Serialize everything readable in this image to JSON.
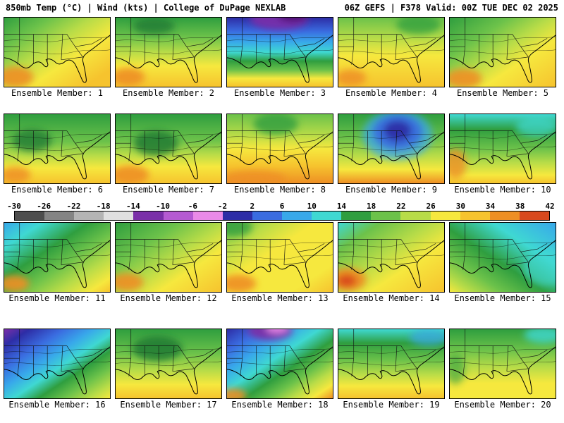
{
  "header": {
    "left": "850mb Temp (°C) | Wind (kts) | College of DuPage NEXLAB",
    "right": "06Z GEFS | F378 Valid: 00Z TUE DEC 02 2025"
  },
  "colorbar": {
    "unit": "°C",
    "ticks": [
      "-30",
      "-26",
      "-22",
      "-18",
      "-14",
      "-10",
      "-6",
      "-2",
      "2",
      "6",
      "10",
      "14",
      "18",
      "22",
      "26",
      "30",
      "34",
      "38",
      "42"
    ],
    "colors": [
      "#4d4d4d",
      "#848484",
      "#b4b4b4",
      "#e0e0e0",
      "#7a2fa8",
      "#b55ad2",
      "#ea8ae8",
      "#2d2da6",
      "#3a6ce0",
      "#38a8ea",
      "#3fd8d2",
      "#2f9e3f",
      "#6cc24a",
      "#b8dc48",
      "#f6e83e",
      "#f6c32e",
      "#ee8f24",
      "#d8491e"
    ]
  },
  "panels": [
    {
      "label": "Ensemble Member: 1",
      "dir": "d",
      "stops": [
        [
          0,
          "#2f9e3f"
        ],
        [
          0.22,
          "#6cc24a"
        ],
        [
          0.42,
          "#b8dc48"
        ],
        [
          0.62,
          "#f6e83e"
        ],
        [
          0.88,
          "#f6c32e"
        ],
        [
          1,
          "#f6c32e"
        ]
      ],
      "blobs": [
        [
          16,
          86,
          26,
          15,
          "#ee8f24",
          0.9
        ]
      ]
    },
    {
      "label": "Ensemble Member: 2",
      "dir": "v",
      "stops": [
        [
          0,
          "#2f9e3f"
        ],
        [
          0.28,
          "#6cc24a"
        ],
        [
          0.5,
          "#b8dc48"
        ],
        [
          0.7,
          "#f6e83e"
        ],
        [
          1,
          "#f6c32e"
        ]
      ],
      "blobs": [
        [
          55,
          12,
          30,
          12,
          "#1f7a33",
          0.8
        ],
        [
          18,
          86,
          24,
          13,
          "#ee8f24",
          0.9
        ]
      ]
    },
    {
      "label": "Ensemble Member: 3",
      "dir": "v",
      "stops": [
        [
          0,
          "#2d2da6"
        ],
        [
          0.2,
          "#3a6ce0"
        ],
        [
          0.35,
          "#38a8ea"
        ],
        [
          0.5,
          "#3fd8d2"
        ],
        [
          0.63,
          "#2f9e3f"
        ],
        [
          0.76,
          "#6cc24a"
        ],
        [
          0.88,
          "#f6e83e"
        ],
        [
          1,
          "#f6c32e"
        ]
      ],
      "blobs": [
        [
          75,
          2,
          42,
          16,
          "#7a2fa8",
          0.9
        ],
        [
          95,
          -4,
          22,
          10,
          "#4b0d6e",
          0.9
        ]
      ]
    },
    {
      "label": "Ensemble Member: 4",
      "dir": "v",
      "stops": [
        [
          0,
          "#6cc24a"
        ],
        [
          0.3,
          "#b8dc48"
        ],
        [
          0.55,
          "#f6e83e"
        ],
        [
          1,
          "#f6c32e"
        ]
      ],
      "blobs": [
        [
          115,
          10,
          32,
          14,
          "#2f9e3f",
          0.75
        ],
        [
          18,
          87,
          22,
          12,
          "#ee8f24",
          0.85
        ]
      ]
    },
    {
      "label": "Ensemble Member: 5",
      "dir": "d",
      "stops": [
        [
          0,
          "#2f9e3f"
        ],
        [
          0.28,
          "#6cc24a"
        ],
        [
          0.48,
          "#b8dc48"
        ],
        [
          0.66,
          "#f6e83e"
        ],
        [
          1,
          "#f6c32e"
        ]
      ],
      "blobs": [
        [
          20,
          88,
          26,
          14,
          "#ee8f24",
          0.9
        ]
      ]
    },
    {
      "label": "Ensemble Member: 6",
      "dir": "v",
      "stops": [
        [
          0,
          "#2f9e3f"
        ],
        [
          0.4,
          "#6cc24a"
        ],
        [
          0.6,
          "#b8dc48"
        ],
        [
          0.78,
          "#f6e83e"
        ],
        [
          1,
          "#f6c32e"
        ]
      ],
      "blobs": [
        [
          40,
          38,
          28,
          16,
          "#1f7a33",
          0.8
        ],
        [
          16,
          88,
          22,
          12,
          "#ee8f24",
          0.85
        ]
      ]
    },
    {
      "label": "Ensemble Member: 7",
      "dir": "v",
      "stops": [
        [
          0,
          "#2f9e3f"
        ],
        [
          0.38,
          "#6cc24a"
        ],
        [
          0.58,
          "#b8dc48"
        ],
        [
          0.76,
          "#f6e83e"
        ],
        [
          1,
          "#f6c32e"
        ]
      ],
      "blobs": [
        [
          58,
          42,
          32,
          18,
          "#1f7a33",
          0.85
        ],
        [
          20,
          88,
          28,
          14,
          "#ee8f24",
          0.9
        ]
      ]
    },
    {
      "label": "Ensemble Member: 8",
      "dir": "v",
      "stops": [
        [
          0,
          "#6cc24a"
        ],
        [
          0.3,
          "#b8dc48"
        ],
        [
          0.5,
          "#f6e83e"
        ],
        [
          0.75,
          "#f6c32e"
        ],
        [
          1,
          "#ee8f24"
        ]
      ],
      "blobs": [
        [
          70,
          14,
          32,
          16,
          "#2f9e3f",
          0.8
        ],
        [
          40,
          94,
          45,
          12,
          "#ee8f24",
          0.85
        ]
      ]
    },
    {
      "label": "Ensemble Member: 9",
      "dir": "v",
      "stops": [
        [
          0,
          "#2f9e3f"
        ],
        [
          0.35,
          "#6cc24a"
        ],
        [
          0.6,
          "#b8dc48"
        ],
        [
          0.8,
          "#f6e83e"
        ],
        [
          1,
          "#ee8f24"
        ]
      ],
      "blobs": [
        [
          85,
          30,
          50,
          36,
          "#38a8ea",
          0.75
        ],
        [
          85,
          26,
          36,
          26,
          "#3a6ce0",
          0.9
        ],
        [
          85,
          24,
          20,
          15,
          "#2d2da6",
          0.95
        ]
      ]
    },
    {
      "label": "Ensemble Member: 10",
      "dir": "v",
      "stops": [
        [
          0,
          "#3fd8d2"
        ],
        [
          0.22,
          "#2f9e3f"
        ],
        [
          0.5,
          "#6cc24a"
        ],
        [
          0.7,
          "#b8dc48"
        ],
        [
          0.88,
          "#f6e83e"
        ],
        [
          1,
          "#f6c32e"
        ]
      ],
      "blobs": [
        [
          8,
          72,
          16,
          22,
          "#ee8f24",
          0.8
        ],
        [
          125,
          18,
          30,
          14,
          "#3fd8d2",
          0.7
        ]
      ]
    },
    {
      "label": "Ensemble Member: 11",
      "dir": "d",
      "stops": [
        [
          0,
          "#38a8ea"
        ],
        [
          0.18,
          "#3fd8d2"
        ],
        [
          0.4,
          "#2f9e3f"
        ],
        [
          0.58,
          "#6cc24a"
        ],
        [
          0.75,
          "#b8dc48"
        ],
        [
          0.9,
          "#f6e83e"
        ],
        [
          1,
          "#f6c32e"
        ]
      ],
      "blobs": [
        [
          14,
          88,
          22,
          12,
          "#ee8f24",
          0.9
        ]
      ]
    },
    {
      "label": "Ensemble Member: 12",
      "dir": "d",
      "stops": [
        [
          0,
          "#2f9e3f"
        ],
        [
          0.3,
          "#6cc24a"
        ],
        [
          0.52,
          "#b8dc48"
        ],
        [
          0.7,
          "#f6e83e"
        ],
        [
          1,
          "#f6c32e"
        ]
      ],
      "blobs": [
        [
          16,
          86,
          24,
          13,
          "#ee8f24",
          0.9
        ]
      ]
    },
    {
      "label": "Ensemble Member: 13",
      "dir": "d",
      "stops": [
        [
          0,
          "#6cc24a"
        ],
        [
          0.2,
          "#b8dc48"
        ],
        [
          0.42,
          "#f6e83e"
        ],
        [
          0.8,
          "#f6e83e"
        ],
        [
          1,
          "#f6c32e"
        ]
      ],
      "blobs": [
        [
          10,
          6,
          26,
          14,
          "#2f9e3f",
          0.8
        ],
        [
          16,
          88,
          26,
          13,
          "#ee8f24",
          0.9
        ]
      ]
    },
    {
      "label": "Ensemble Member: 14",
      "dir": "d",
      "stops": [
        [
          0,
          "#3fd8d2"
        ],
        [
          0.2,
          "#6cc24a"
        ],
        [
          0.45,
          "#b8dc48"
        ],
        [
          0.65,
          "#f6e83e"
        ],
        [
          1,
          "#f6c32e"
        ]
      ],
      "blobs": [
        [
          14,
          82,
          26,
          17,
          "#ee8f24",
          0.95
        ],
        [
          12,
          84,
          14,
          9,
          "#d8491e",
          0.95
        ]
      ]
    },
    {
      "label": "Ensemble Member: 15",
      "dir": "dr",
      "stops": [
        [
          0,
          "#38a8ea"
        ],
        [
          0.3,
          "#3fd8d2"
        ],
        [
          0.55,
          "#2f9e3f"
        ],
        [
          0.75,
          "#6cc24a"
        ],
        [
          0.9,
          "#b8dc48"
        ],
        [
          1,
          "#f6e83e"
        ]
      ],
      "blobs": [
        [
          140,
          65,
          34,
          26,
          "#3fd8d2",
          0.6
        ]
      ]
    },
    {
      "label": "Ensemble Member: 16",
      "dir": "d",
      "stops": [
        [
          0,
          "#7a2fa8"
        ],
        [
          0.12,
          "#2d2da6"
        ],
        [
          0.28,
          "#3a6ce0"
        ],
        [
          0.42,
          "#38a8ea"
        ],
        [
          0.54,
          "#3fd8d2"
        ],
        [
          0.66,
          "#2f9e3f"
        ],
        [
          0.78,
          "#6cc24a"
        ],
        [
          0.9,
          "#b8dc48"
        ],
        [
          1,
          "#f6e83e"
        ]
      ],
      "blobs": []
    },
    {
      "label": "Ensemble Member: 17",
      "dir": "v",
      "stops": [
        [
          0,
          "#2f9e3f"
        ],
        [
          0.35,
          "#6cc24a"
        ],
        [
          0.6,
          "#b8dc48"
        ],
        [
          0.8,
          "#f6e83e"
        ],
        [
          1,
          "#f6c32e"
        ]
      ],
      "blobs": [
        [
          60,
          28,
          36,
          18,
          "#1f7a33",
          0.85
        ]
      ]
    },
    {
      "label": "Ensemble Member: 18",
      "dir": "d",
      "stops": [
        [
          0,
          "#2d2da6"
        ],
        [
          0.16,
          "#3a6ce0"
        ],
        [
          0.3,
          "#38a8ea"
        ],
        [
          0.44,
          "#3fd8d2"
        ],
        [
          0.58,
          "#2f9e3f"
        ],
        [
          0.7,
          "#6cc24a"
        ],
        [
          0.8,
          "#b8dc48"
        ],
        [
          0.9,
          "#f6e83e"
        ],
        [
          1,
          "#ee8f24"
        ]
      ],
      "blobs": [
        [
          62,
          2,
          32,
          14,
          "#7a2fa8",
          0.95
        ],
        [
          72,
          -2,
          16,
          8,
          "#ea8ae8",
          0.9
        ],
        [
          8,
          96,
          20,
          10,
          "#ee8f24",
          0.9
        ]
      ]
    },
    {
      "label": "Ensemble Member: 19",
      "dir": "v",
      "stops": [
        [
          0,
          "#3fd8d2"
        ],
        [
          0.2,
          "#2f9e3f"
        ],
        [
          0.45,
          "#6cc24a"
        ],
        [
          0.65,
          "#b8dc48"
        ],
        [
          0.82,
          "#f6e83e"
        ],
        [
          1,
          "#f6c32e"
        ]
      ],
      "blobs": [
        [
          130,
          12,
          28,
          12,
          "#38a8ea",
          0.7
        ]
      ]
    },
    {
      "label": "Ensemble Member: 20",
      "dir": "v",
      "stops": [
        [
          0,
          "#2f9e3f"
        ],
        [
          0.3,
          "#6cc24a"
        ],
        [
          0.55,
          "#b8dc48"
        ],
        [
          0.78,
          "#f6e83e"
        ],
        [
          1,
          "#f6e83e"
        ]
      ],
      "blobs": [
        [
          135,
          8,
          28,
          12,
          "#3fd8d2",
          0.8
        ],
        [
          8,
          58,
          14,
          22,
          "#2f9e3f",
          0.6
        ]
      ]
    }
  ]
}
